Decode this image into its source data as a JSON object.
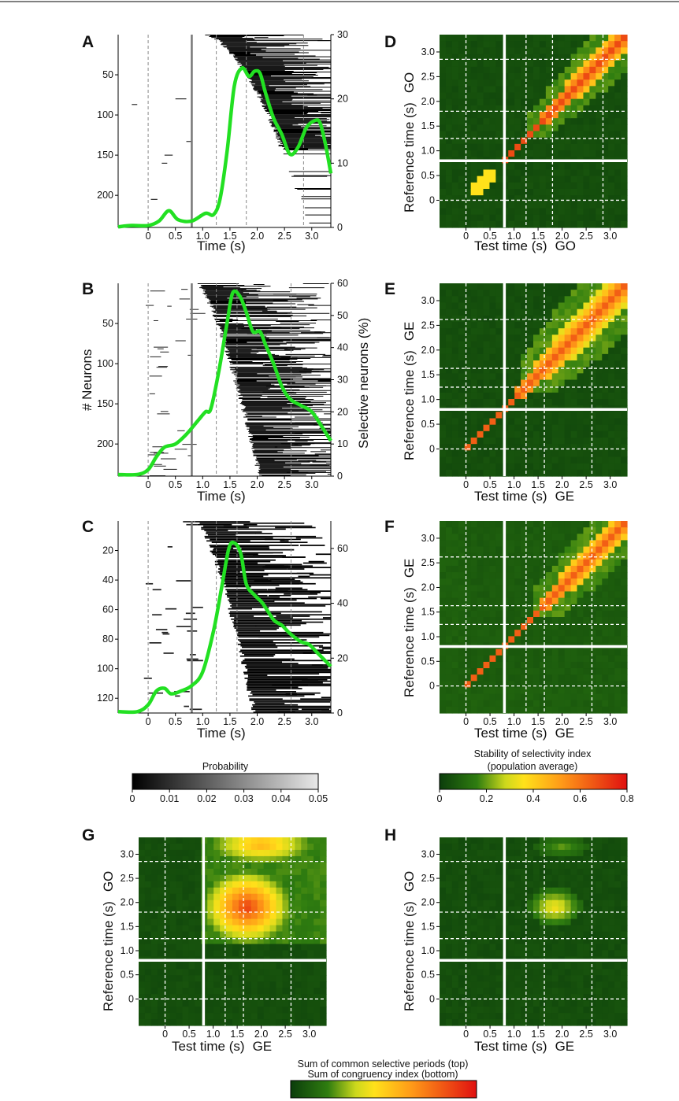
{
  "figure": {
    "panels": {
      "A": {
        "letter": "A"
      },
      "B": {
        "letter": "B"
      },
      "C": {
        "letter": "C"
      },
      "D": {
        "letter": "D"
      },
      "E": {
        "letter": "E"
      },
      "F": {
        "letter": "F"
      },
      "G": {
        "letter": "G"
      },
      "H": {
        "letter": "H"
      }
    },
    "left_xlabel": "Time (s)",
    "left_ylabel_B": "# Neurons",
    "right_ylabel_B": "Selective neurons (%)",
    "heat_xlabel": "Test time (s)",
    "heat_ylabel": "Reference time (s)",
    "cond_GO": "GO",
    "cond_GE": "GE",
    "colorbar_gray": {
      "title": "Probability",
      "ticks": [
        "0",
        "0.01",
        "0.02",
        "0.03",
        "0.04",
        "0.05"
      ]
    },
    "colorbar_heat": {
      "title_line1": "Stability of selectivity index",
      "title_line2": "(population average)",
      "ticks": [
        "0",
        "0.2",
        "0.4",
        "0.6",
        "0.8"
      ]
    },
    "colorbar_bottom": {
      "title_line1": "Sum of common selective periods (top)",
      "title_line2": "Sum of congruency index (bottom)"
    }
  },
  "chart_data": [
    {
      "id": "A",
      "type": "line",
      "x_ticks": [
        "0",
        "0.5",
        "1.0",
        "1.5",
        "2.0",
        "2.5",
        "3.0"
      ],
      "y_left_ticks": [
        "50",
        "100",
        "150",
        "200"
      ],
      "y_right_ticks": [
        "0",
        "10",
        "20",
        "30"
      ],
      "xlim": [
        -0.55,
        3.35
      ],
      "ylim_right": [
        0,
        30
      ],
      "series": [
        {
          "values": [
            [
              -0.55,
              0.1
            ],
            [
              -0.3,
              0.3
            ],
            [
              0.0,
              0.3
            ],
            [
              0.2,
              1.0
            ],
            [
              0.38,
              2.6
            ],
            [
              0.55,
              1.2
            ],
            [
              0.8,
              1.0
            ],
            [
              1.05,
              2.2
            ],
            [
              1.2,
              2.0
            ],
            [
              1.32,
              4.5
            ],
            [
              1.45,
              12
            ],
            [
              1.58,
              22
            ],
            [
              1.72,
              24.8
            ],
            [
              1.85,
              23.5
            ],
            [
              1.95,
              24.3
            ],
            [
              2.05,
              24.0
            ],
            [
              2.15,
              21
            ],
            [
              2.3,
              17
            ],
            [
              2.45,
              14.5
            ],
            [
              2.6,
              11.4
            ],
            [
              2.75,
              12.5
            ],
            [
              2.9,
              15.5
            ],
            [
              3.05,
              16.6
            ],
            [
              3.15,
              16.3
            ],
            [
              3.25,
              13
            ],
            [
              3.35,
              8.4
            ]
          ]
        }
      ],
      "vlines_dashed": [
        0,
        1.25,
        1.8,
        2.85
      ],
      "vline_solid": 0.8
    },
    {
      "id": "B",
      "type": "line",
      "x_ticks": [
        "0",
        "0.5",
        "1.0",
        "1.5",
        "2.0",
        "2.5",
        "3.0"
      ],
      "y_left_ticks": [
        "50",
        "100",
        "150",
        "200"
      ],
      "y_right_ticks": [
        "0",
        "10",
        "20",
        "30",
        "40",
        "50",
        "60"
      ],
      "xlim": [
        -0.55,
        3.35
      ],
      "ylim_right": [
        0,
        60
      ],
      "series": [
        {
          "values": [
            [
              -0.55,
              0.5
            ],
            [
              -0.2,
              0.5
            ],
            [
              0.0,
              2
            ],
            [
              0.15,
              6
            ],
            [
              0.3,
              9
            ],
            [
              0.5,
              10
            ],
            [
              0.7,
              13
            ],
            [
              0.9,
              17
            ],
            [
              1.05,
              20
            ],
            [
              1.15,
              21
            ],
            [
              1.3,
              33
            ],
            [
              1.45,
              48
            ],
            [
              1.55,
              57
            ],
            [
              1.68,
              56
            ],
            [
              1.8,
              51
            ],
            [
              1.92,
              45
            ],
            [
              2.05,
              45
            ],
            [
              2.15,
              41
            ],
            [
              2.3,
              35
            ],
            [
              2.45,
              28
            ],
            [
              2.6,
              24
            ],
            [
              2.8,
              22
            ],
            [
              3.0,
              20
            ],
            [
              3.2,
              15
            ],
            [
              3.35,
              11
            ]
          ]
        }
      ],
      "vlines_dashed": [
        0,
        1.25,
        1.63,
        2.62
      ],
      "vline_solid": 0.8
    },
    {
      "id": "C",
      "type": "line",
      "x_ticks": [
        "0",
        "0.5",
        "1.0",
        "1.5",
        "2.0",
        "2.5",
        "3.0"
      ],
      "y_left_ticks": [
        "20",
        "40",
        "60",
        "80",
        "100",
        "120"
      ],
      "y_right_ticks": [
        "0",
        "20",
        "40",
        "60"
      ],
      "xlim": [
        -0.55,
        3.35
      ],
      "ylim_right": [
        0,
        70
      ],
      "series": [
        {
          "values": [
            [
              -0.55,
              0.5
            ],
            [
              -0.2,
              0.5
            ],
            [
              0.0,
              3
            ],
            [
              0.15,
              8
            ],
            [
              0.3,
              9
            ],
            [
              0.42,
              7
            ],
            [
              0.6,
              8
            ],
            [
              0.8,
              10
            ],
            [
              1.0,
              15
            ],
            [
              1.2,
              30
            ],
            [
              1.35,
              46
            ],
            [
              1.48,
              60
            ],
            [
              1.58,
              62
            ],
            [
              1.7,
              58
            ],
            [
              1.8,
              47
            ],
            [
              1.95,
              43
            ],
            [
              2.1,
              40
            ],
            [
              2.3,
              34
            ],
            [
              2.45,
              32
            ],
            [
              2.6,
              29
            ],
            [
              2.8,
              26
            ],
            [
              2.95,
              25
            ],
            [
              3.1,
              22
            ],
            [
              3.35,
              17
            ]
          ]
        }
      ],
      "vlines_dashed": [
        0,
        1.25,
        1.63,
        2.62
      ],
      "vline_solid": 0.8
    },
    {
      "id": "D",
      "type": "heatmap",
      "ticks": [
        "0",
        "0.5",
        "1.0",
        "1.5",
        "2.0",
        "2.5",
        "3.0"
      ],
      "xlim": [
        -0.55,
        3.35
      ],
      "ylim": [
        -0.55,
        3.35
      ],
      "colorbar": [
        0,
        0.8
      ]
    },
    {
      "id": "E",
      "type": "heatmap",
      "ticks": [
        "0",
        "0.5",
        "1.0",
        "1.5",
        "2.0",
        "2.5",
        "3.0"
      ],
      "xlim": [
        -0.55,
        3.35
      ],
      "ylim": [
        -0.55,
        3.35
      ],
      "colorbar": [
        0,
        0.8
      ]
    },
    {
      "id": "F",
      "type": "heatmap",
      "ticks": [
        "0",
        "0.5",
        "1.0",
        "1.5",
        "2.0",
        "2.5",
        "3.0"
      ],
      "xlim": [
        -0.55,
        3.35
      ],
      "ylim": [
        -0.55,
        3.35
      ],
      "colorbar": [
        0,
        0.8
      ]
    },
    {
      "id": "G",
      "type": "heatmap",
      "ticks": [
        "0",
        "0.5",
        "1.0",
        "1.5",
        "2.0",
        "2.5",
        "3.0"
      ],
      "xlim": [
        -0.55,
        3.35
      ],
      "ylim": [
        -0.55,
        3.35
      ]
    },
    {
      "id": "H",
      "type": "heatmap",
      "ticks": [
        "0",
        "0.5",
        "1.0",
        "1.5",
        "2.0",
        "2.5",
        "3.0"
      ],
      "xlim": [
        -0.55,
        3.35
      ],
      "ylim": [
        -0.55,
        3.35
      ]
    }
  ],
  "colors": {
    "line": "#22e022",
    "heat_low": "#0b3d0b",
    "heat_high": "#e01010"
  }
}
